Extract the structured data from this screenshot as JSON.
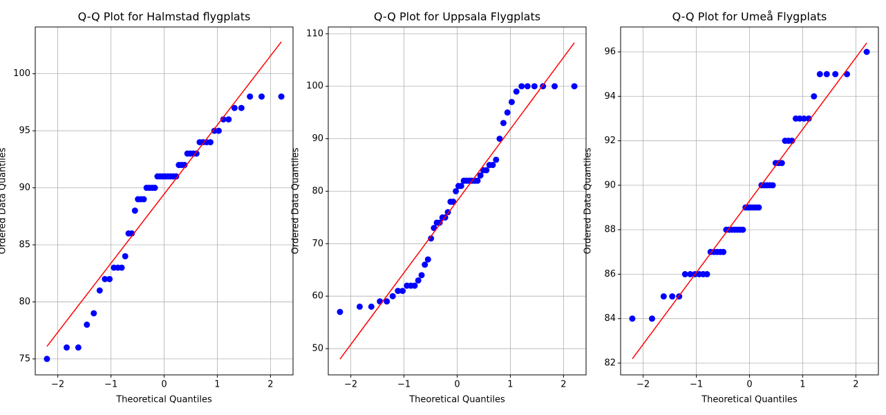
{
  "chart_data": [
    {
      "type": "scatter",
      "title": "Q-Q Plot for Halmstad flygplats",
      "x_label": "Theoretical Quantiles",
      "y_label": "Ordered Data Quantiles",
      "color": "blue",
      "grid": true,
      "x": [
        -2.204,
        -1.833,
        -1.614,
        -1.453,
        -1.323,
        -1.212,
        -1.114,
        -1.026,
        -0.945,
        -0.87,
        -0.799,
        -0.732,
        -0.669,
        -0.608,
        -0.549,
        -0.492,
        -0.437,
        -0.383,
        -0.33,
        -0.277,
        -0.226,
        -0.175,
        -0.125,
        -0.075,
        -0.025,
        0.025,
        0.075,
        0.125,
        0.175,
        0.226,
        0.277,
        0.33,
        0.383,
        0.437,
        0.492,
        0.549,
        0.608,
        0.669,
        0.732,
        0.799,
        0.87,
        0.945,
        1.026,
        1.114,
        1.212,
        1.323,
        1.453,
        1.614,
        1.833,
        2.204
      ],
      "values": [
        75,
        76,
        76,
        78,
        79,
        81,
        82,
        82,
        83,
        83,
        83,
        84,
        86,
        86,
        88,
        89,
        89,
        89,
        90,
        90,
        90,
        90,
        91,
        91,
        91,
        91,
        91,
        91,
        91,
        91,
        92,
        92,
        92,
        93,
        93,
        93,
        93,
        94,
        94,
        94,
        94,
        95,
        95,
        96,
        96,
        97,
        97,
        98,
        98,
        98
      ],
      "fit_line": {
        "color": "red",
        "x": [
          -2.204,
          2.204
        ],
        "y": [
          76.1,
          102.8
        ]
      },
      "xlim": [
        -2.424,
        2.424
      ],
      "ylim": [
        73.6,
        104.1
      ],
      "xticks": [
        {
          "value": -2,
          "label": "−2"
        },
        {
          "value": -1,
          "label": "−1"
        },
        0,
        1,
        2
      ],
      "yticks": [
        75,
        80,
        85,
        90,
        95,
        100
      ]
    },
    {
      "type": "scatter",
      "title": "Q-Q Plot for Uppsala Flygplats",
      "x_label": "Theoretical Quantiles",
      "y_label": "Ordered Data Quantiles",
      "color": "blue",
      "grid": true,
      "x": [
        -2.204,
        -1.833,
        -1.614,
        -1.453,
        -1.323,
        -1.212,
        -1.114,
        -1.026,
        -0.945,
        -0.87,
        -0.799,
        -0.732,
        -0.669,
        -0.608,
        -0.549,
        -0.492,
        -0.437,
        -0.383,
        -0.33,
        -0.277,
        -0.226,
        -0.175,
        -0.125,
        -0.075,
        -0.025,
        0.025,
        0.075,
        0.125,
        0.175,
        0.226,
        0.277,
        0.33,
        0.383,
        0.437,
        0.492,
        0.549,
        0.608,
        0.669,
        0.732,
        0.799,
        0.87,
        0.945,
        1.026,
        1.114,
        1.212,
        1.323,
        1.453,
        1.614,
        1.833,
        2.204
      ],
      "values": [
        57,
        58,
        58,
        59,
        59,
        60,
        61,
        61,
        62,
        62,
        62,
        63,
        64,
        66,
        67,
        71,
        73,
        74,
        74,
        75,
        75,
        76,
        78,
        78,
        80,
        81,
        81,
        82,
        82,
        82,
        82,
        82,
        82,
        83,
        84,
        84,
        85,
        85,
        86,
        90,
        93,
        95,
        97,
        99,
        100,
        100,
        100,
        100,
        100,
        100
      ],
      "fit_line": {
        "color": "red",
        "x": [
          -2.204,
          2.204
        ],
        "y": [
          48.0,
          108.3
        ]
      },
      "xlim": [
        -2.424,
        2.424
      ],
      "ylim": [
        45,
        111.3
      ],
      "xticks": [
        {
          "value": -2,
          "label": "−2"
        },
        {
          "value": -1,
          "label": "−1"
        },
        0,
        1,
        2
      ],
      "yticks": [
        50,
        60,
        70,
        80,
        90,
        100,
        110
      ]
    },
    {
      "type": "scatter",
      "title": "Q-Q Plot for Umeå Flygplats",
      "x_label": "Theoretical Quantiles",
      "y_label": "Ordered Data Quantiles",
      "color": "blue",
      "grid": true,
      "x": [
        -2.204,
        -1.833,
        -1.614,
        -1.453,
        -1.323,
        -1.212,
        -1.114,
        -1.026,
        -0.945,
        -0.87,
        -0.799,
        -0.732,
        -0.669,
        -0.608,
        -0.549,
        -0.492,
        -0.437,
        -0.383,
        -0.33,
        -0.277,
        -0.226,
        -0.175,
        -0.125,
        -0.075,
        -0.025,
        0.025,
        0.075,
        0.125,
        0.175,
        0.226,
        0.277,
        0.33,
        0.383,
        0.437,
        0.492,
        0.549,
        0.608,
        0.669,
        0.732,
        0.799,
        0.87,
        0.945,
        1.026,
        1.114,
        1.212,
        1.323,
        1.453,
        1.614,
        1.833,
        2.204
      ],
      "values": [
        84,
        84,
        85,
        85,
        85,
        86,
        86,
        86,
        86,
        86,
        86,
        87,
        87,
        87,
        87,
        87,
        88,
        88,
        88,
        88,
        88,
        88,
        88,
        89,
        89,
        89,
        89,
        89,
        89,
        90,
        90,
        90,
        90,
        90,
        91,
        91,
        91,
        92,
        92,
        92,
        93,
        93,
        93,
        93,
        94,
        95,
        95,
        95,
        95,
        96
      ],
      "fit_line": {
        "color": "red",
        "x": [
          -2.204,
          2.204
        ],
        "y": [
          82.19,
          96.4
        ]
      },
      "xlim": [
        -2.424,
        2.424
      ],
      "ylim": [
        81.47,
        97.12
      ],
      "xticks": [
        {
          "value": -2,
          "label": "−2"
        },
        {
          "value": -1,
          "label": "−1"
        },
        0,
        1,
        2
      ],
      "yticks": [
        82,
        84,
        86,
        88,
        90,
        92,
        94,
        96
      ]
    }
  ]
}
